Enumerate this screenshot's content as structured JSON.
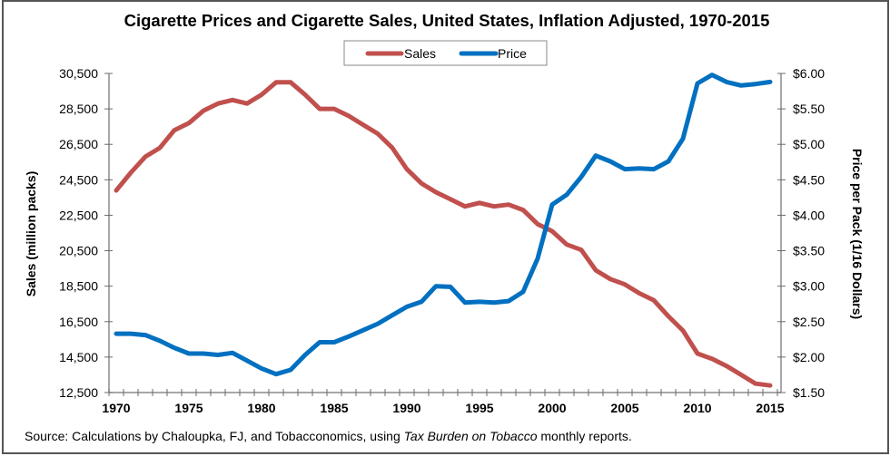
{
  "chart_data": {
    "type": "line",
    "title": "Cigarette Prices and Cigarette Sales, United States, Inflation Adjusted, 1970-2015",
    "xlabel": "",
    "ylabel": "Sales (million packs)",
    "y2label": "Price per Pack (1/16 Dollars)",
    "x": [
      1970,
      1971,
      1972,
      1973,
      1974,
      1975,
      1976,
      1977,
      1978,
      1979,
      1980,
      1981,
      1982,
      1983,
      1984,
      1985,
      1986,
      1987,
      1988,
      1989,
      1990,
      1991,
      1992,
      1993,
      1994,
      1995,
      1996,
      1997,
      1998,
      1999,
      2000,
      2001,
      2002,
      2003,
      2004,
      2005,
      2006,
      2007,
      2008,
      2009,
      2010,
      2011,
      2012,
      2013,
      2014,
      2015
    ],
    "x_tick_labels": [
      "1970",
      "1975",
      "1980",
      "1985",
      "1990",
      "1995",
      "2000",
      "2005",
      "2010",
      "2015"
    ],
    "ylim": [
      12500,
      30500
    ],
    "y_tick_labels": [
      "30,500",
      "28,500",
      "26,500",
      "24,500",
      "22,500",
      "20,500",
      "18,500",
      "16,500",
      "14,500",
      "12,500"
    ],
    "y_ticks": [
      30500,
      28500,
      26500,
      24500,
      22500,
      20500,
      18500,
      16500,
      14500,
      12500
    ],
    "y2lim": [
      1.5,
      6.0
    ],
    "y2_tick_labels": [
      "$6.00",
      "$5.50",
      "$5.00",
      "$4.50",
      "$4.00",
      "$3.50",
      "$3.00",
      "$2.50",
      "$2.00",
      "$1.50"
    ],
    "y2_ticks": [
      6.0,
      5.5,
      5.0,
      4.5,
      4.0,
      3.5,
      3.0,
      2.5,
      2.0,
      1.5
    ],
    "grid": false,
    "legend_position": "top-center",
    "series": [
      {
        "name": "Sales",
        "axis": "left",
        "color": "#C0504D",
        "values": [
          23900,
          24900,
          25800,
          26300,
          27300,
          27700,
          28400,
          28800,
          29000,
          28800,
          29300,
          30000,
          30000,
          29300,
          28500,
          28500,
          28100,
          27600,
          27100,
          26300,
          25100,
          24300,
          23800,
          23400,
          23000,
          23200,
          23000,
          23100,
          22800,
          22000,
          21600,
          20850,
          20550,
          19400,
          18900,
          18600,
          18100,
          17700,
          16800,
          16000,
          14700,
          14400,
          14000,
          13500,
          13000,
          12900
        ]
      },
      {
        "name": "Price",
        "axis": "right",
        "color": "#0070C0",
        "values": [
          2.33,
          2.33,
          2.31,
          2.23,
          2.13,
          2.05,
          2.05,
          2.03,
          2.06,
          1.95,
          1.84,
          1.76,
          1.82,
          2.03,
          2.21,
          2.21,
          2.29,
          2.38,
          2.47,
          2.59,
          2.71,
          2.78,
          3.0,
          2.99,
          2.77,
          2.78,
          2.77,
          2.79,
          2.92,
          3.39,
          4.15,
          4.29,
          4.54,
          4.84,
          4.76,
          4.65,
          4.66,
          4.65,
          4.76,
          5.08,
          5.86,
          5.98,
          5.88,
          5.83,
          5.85,
          5.88
        ]
      }
    ],
    "source_prefix": "Source: Calculations by Chaloupka, FJ, and Tobacconomics, using ",
    "source_italic": "Tax Burden on Tobacco",
    "source_suffix": " monthly reports."
  }
}
